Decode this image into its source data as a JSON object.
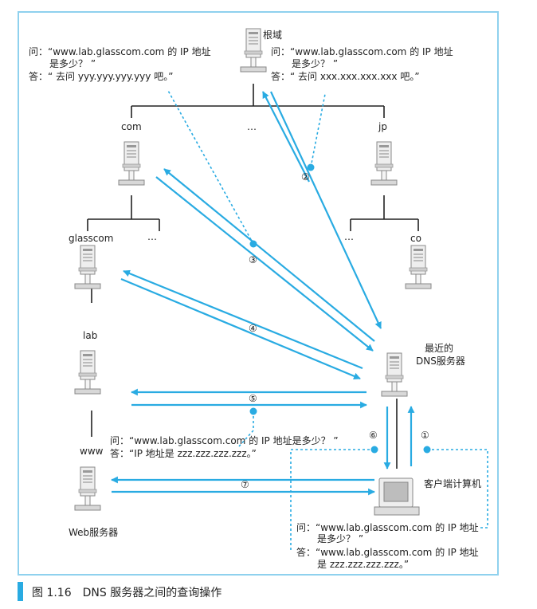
{
  "caption": "图 1.16　DNS 服务器之间的查询操作",
  "nodes": {
    "root": "根域",
    "com": "com",
    "dots_top": "…",
    "jp": "jp",
    "glasscom": "glasscom",
    "dots_com": "…",
    "dots_jp": "…",
    "co": "co",
    "lab": "lab",
    "www": "www",
    "nearest_dns_line1": "最近的",
    "nearest_dns_line2": "DNS服务器",
    "client": "客户端计算机",
    "web_server": "Web服务器"
  },
  "steps": [
    "①",
    "②",
    "③",
    "④",
    "⑤",
    "⑥",
    "⑦"
  ],
  "dialogs": {
    "com_q1": "问：“www.lab.glasscom.com 的 IP 地址",
    "com_q2": "是多少？ ”",
    "com_a": "答：“ 去问 yyy.yyy.yyy.yyy 吧。”",
    "root_q1": "问：“www.lab.glasscom.com 的 IP 地址",
    "root_q2": "是多少？ ”",
    "root_a": "答：“ 去问 xxx.xxx.xxx.xxx 吧。”",
    "lab_q": "问：“www.lab.glasscom.com 的 IP 地址是多少？ ”",
    "lab_a": "答：“IP 地址是 zzz.zzz.zzz.zzz。”",
    "client_q1": "问：“www.lab.glasscom.com 的 IP 地址",
    "client_q2": "是多少？ ”",
    "client_a1": "答：“www.lab.glasscom.com 的 IP 地址",
    "client_a2": "是 zzz.zzz.zzz.zzz。”"
  },
  "colors": {
    "arrow": "#29abe2",
    "tree": "#222222",
    "frame": "#8fd1ee"
  }
}
